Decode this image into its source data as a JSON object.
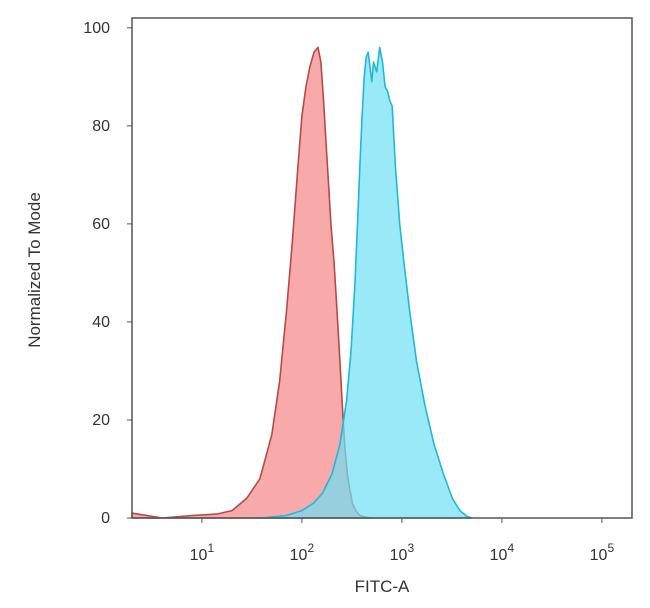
{
  "chart_data": {
    "type": "area",
    "title": "",
    "xlabel": "FITC-A",
    "ylabel": "Normalized To Mode",
    "x_scale": "log",
    "xlim": [
      2,
      200000
    ],
    "ylim": [
      0,
      102
    ],
    "grid": false,
    "x_ticks": [
      {
        "value": 10,
        "base": "10",
        "exp": "1"
      },
      {
        "value": 100,
        "base": "10",
        "exp": "2"
      },
      {
        "value": 1000,
        "base": "10",
        "exp": "3"
      },
      {
        "value": 10000,
        "base": "10",
        "exp": "4"
      },
      {
        "value": 100000,
        "base": "10",
        "exp": "5"
      }
    ],
    "y_ticks": [
      {
        "value": 0,
        "label": "0"
      },
      {
        "value": 20,
        "label": "20"
      },
      {
        "value": 40,
        "label": "40"
      },
      {
        "value": 60,
        "label": "60"
      },
      {
        "value": 80,
        "label": "80"
      },
      {
        "value": 100,
        "label": "100"
      }
    ],
    "series": [
      {
        "fill": "#f79a9a",
        "stroke": "#b64a4a",
        "fill_opacity": 0.85,
        "x": [
          2,
          4,
          8,
          14,
          20,
          28,
          38,
          50,
          60,
          70,
          80,
          90,
          100,
          110,
          120,
          132,
          145,
          155,
          165,
          175,
          185,
          195,
          210,
          225,
          240,
          255,
          270,
          285,
          300,
          320,
          345,
          380,
          430,
          500
        ],
        "y": [
          1,
          0,
          0.5,
          0.8,
          1.5,
          4,
          8,
          17,
          28,
          42,
          56,
          70,
          82,
          88,
          92,
          95,
          96,
          93,
          85,
          76,
          68,
          60,
          52,
          42,
          32,
          22,
          14,
          9,
          6,
          3,
          1.5,
          0.5,
          0.2,
          0
        ]
      },
      {
        "fill": "#6fe0f7",
        "stroke": "#1fb8d8",
        "fill_opacity": 0.7,
        "x": [
          40,
          70,
          100,
          130,
          160,
          200,
          240,
          280,
          310,
          340,
          360,
          380,
          400,
          420,
          440,
          460,
          480,
          500,
          520,
          560,
          600,
          640,
          680,
          720,
          760,
          800,
          860,
          950,
          1050,
          1200,
          1400,
          1700,
          2100,
          2600,
          3200,
          3800,
          4500,
          5000
        ],
        "y": [
          0,
          0.5,
          1.5,
          3,
          5,
          9,
          15,
          24,
          34,
          48,
          60,
          72,
          82,
          90,
          94,
          95,
          92,
          89,
          93,
          91,
          96,
          93,
          88,
          87,
          85,
          84,
          72,
          60,
          52,
          42,
          32,
          23,
          15,
          9,
          4,
          1.5,
          0.3,
          0
        ]
      }
    ]
  }
}
